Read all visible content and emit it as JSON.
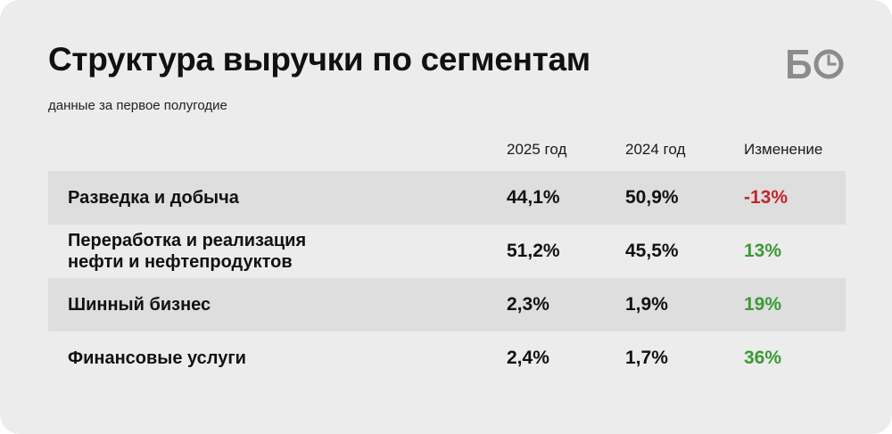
{
  "header": {
    "title": "Структура выручки по сегментам",
    "subtitle": "данные за первое полугодие",
    "logo_text": "БО"
  },
  "colors": {
    "background": "#ececec",
    "row_shade": "#dedede",
    "negative": "#c0272d",
    "positive": "#3a9a35",
    "logo": "#8c8c8c"
  },
  "chart_data": {
    "type": "table",
    "columns": [
      "",
      "2025 год",
      "2024 год",
      "Изменение"
    ],
    "rows": [
      {
        "segment": "Разведка и добыча",
        "y2025": "44,1%",
        "y2024": "50,9%",
        "change": "-13%",
        "change_sign": "negative"
      },
      {
        "segment": "Переработка и реализация\nнефти и нефтепродуктов",
        "y2025": "51,2%",
        "y2024": "45,5%",
        "change": "13%",
        "change_sign": "positive"
      },
      {
        "segment": "Шинный бизнес",
        "y2025": "2,3%",
        "y2024": "1,9%",
        "change": "19%",
        "change_sign": "positive"
      },
      {
        "segment": "Финансовые услуги",
        "y2025": "2,4%",
        "y2024": "1,7%",
        "change": "36%",
        "change_sign": "positive"
      }
    ]
  }
}
